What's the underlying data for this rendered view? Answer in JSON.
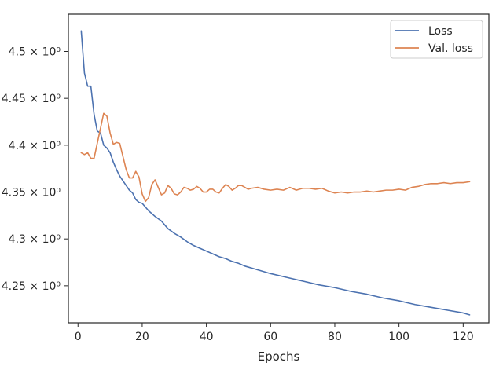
{
  "chart_data": {
    "type": "line",
    "title": "",
    "xlabel": "Epochs",
    "ylabel": "",
    "xlim": [
      -3,
      128
    ],
    "ylim": [
      4.2105,
      4.5398
    ],
    "x_ticks": [
      0,
      20,
      40,
      60,
      80,
      100,
      120
    ],
    "x_tick_labels": [
      "0",
      "20",
      "40",
      "60",
      "80",
      "100",
      "120"
    ],
    "y_ticks": [
      4.25,
      4.3,
      4.35,
      4.4,
      4.45,
      4.5
    ],
    "y_tick_labels": [
      "4.25 × 10⁰",
      "4.3 × 10⁰",
      "4.35 × 10⁰",
      "4.4 × 10⁰",
      "4.45 × 10⁰",
      "4.5 × 10⁰"
    ],
    "grid": false,
    "legend_position": "top-right",
    "series": [
      {
        "name": "Loss",
        "color": "#4c72b0",
        "points": [
          [
            1,
            4.522
          ],
          [
            2,
            4.477
          ],
          [
            3,
            4.463
          ],
          [
            4,
            4.463
          ],
          [
            5,
            4.433
          ],
          [
            6,
            4.415
          ],
          [
            7,
            4.413
          ],
          [
            8,
            4.4
          ],
          [
            9,
            4.397
          ],
          [
            10,
            4.392
          ],
          [
            11,
            4.382
          ],
          [
            12,
            4.374
          ],
          [
            13,
            4.367
          ],
          [
            14,
            4.362
          ],
          [
            15,
            4.357
          ],
          [
            16,
            4.352
          ],
          [
            17,
            4.349
          ],
          [
            18,
            4.342
          ],
          [
            19,
            4.339
          ],
          [
            20,
            4.338
          ],
          [
            22,
            4.33
          ],
          [
            24,
            4.324
          ],
          [
            26,
            4.319
          ],
          [
            28,
            4.311
          ],
          [
            30,
            4.306
          ],
          [
            32,
            4.302
          ],
          [
            34,
            4.297
          ],
          [
            36,
            4.293
          ],
          [
            38,
            4.29
          ],
          [
            40,
            4.287
          ],
          [
            42,
            4.284
          ],
          [
            44,
            4.281
          ],
          [
            46,
            4.279
          ],
          [
            48,
            4.276
          ],
          [
            50,
            4.274
          ],
          [
            52,
            4.271
          ],
          [
            55,
            4.268
          ],
          [
            60,
            4.263
          ],
          [
            65,
            4.259
          ],
          [
            70,
            4.255
          ],
          [
            75,
            4.251
          ],
          [
            80,
            4.248
          ],
          [
            85,
            4.244
          ],
          [
            90,
            4.241
          ],
          [
            95,
            4.237
          ],
          [
            100,
            4.234
          ],
          [
            105,
            4.23
          ],
          [
            110,
            4.227
          ],
          [
            115,
            4.224
          ],
          [
            120,
            4.221
          ],
          [
            122,
            4.219
          ]
        ]
      },
      {
        "name": "Val. loss",
        "color": "#dd8452",
        "points": [
          [
            1,
            4.392
          ],
          [
            2,
            4.39
          ],
          [
            3,
            4.392
          ],
          [
            4,
            4.386
          ],
          [
            5,
            4.386
          ],
          [
            6,
            4.402
          ],
          [
            7,
            4.418
          ],
          [
            8,
            4.434
          ],
          [
            9,
            4.431
          ],
          [
            10,
            4.413
          ],
          [
            11,
            4.401
          ],
          [
            12,
            4.403
          ],
          [
            13,
            4.402
          ],
          [
            14,
            4.388
          ],
          [
            15,
            4.374
          ],
          [
            16,
            4.365
          ],
          [
            17,
            4.365
          ],
          [
            18,
            4.372
          ],
          [
            19,
            4.366
          ],
          [
            20,
            4.348
          ],
          [
            21,
            4.34
          ],
          [
            22,
            4.344
          ],
          [
            23,
            4.358
          ],
          [
            24,
            4.363
          ],
          [
            25,
            4.355
          ],
          [
            26,
            4.347
          ],
          [
            27,
            4.349
          ],
          [
            28,
            4.357
          ],
          [
            29,
            4.354
          ],
          [
            30,
            4.348
          ],
          [
            31,
            4.347
          ],
          [
            32,
            4.35
          ],
          [
            33,
            4.355
          ],
          [
            34,
            4.354
          ],
          [
            35,
            4.352
          ],
          [
            36,
            4.353
          ],
          [
            37,
            4.356
          ],
          [
            38,
            4.354
          ],
          [
            39,
            4.35
          ],
          [
            40,
            4.35
          ],
          [
            41,
            4.353
          ],
          [
            42,
            4.353
          ],
          [
            43,
            4.35
          ],
          [
            44,
            4.349
          ],
          [
            45,
            4.354
          ],
          [
            46,
            4.358
          ],
          [
            47,
            4.356
          ],
          [
            48,
            4.352
          ],
          [
            49,
            4.354
          ],
          [
            50,
            4.357
          ],
          [
            51,
            4.357
          ],
          [
            52,
            4.355
          ],
          [
            53,
            4.353
          ],
          [
            54,
            4.354
          ],
          [
            56,
            4.355
          ],
          [
            58,
            4.353
          ],
          [
            60,
            4.352
          ],
          [
            62,
            4.353
          ],
          [
            64,
            4.352
          ],
          [
            66,
            4.355
          ],
          [
            68,
            4.352
          ],
          [
            70,
            4.354
          ],
          [
            72,
            4.354
          ],
          [
            74,
            4.353
          ],
          [
            76,
            4.354
          ],
          [
            78,
            4.351
          ],
          [
            80,
            4.349
          ],
          [
            82,
            4.35
          ],
          [
            84,
            4.349
          ],
          [
            86,
            4.35
          ],
          [
            88,
            4.35
          ],
          [
            90,
            4.351
          ],
          [
            92,
            4.35
          ],
          [
            94,
            4.351
          ],
          [
            96,
            4.352
          ],
          [
            98,
            4.352
          ],
          [
            100,
            4.353
          ],
          [
            102,
            4.352
          ],
          [
            104,
            4.355
          ],
          [
            106,
            4.356
          ],
          [
            108,
            4.358
          ],
          [
            110,
            4.359
          ],
          [
            112,
            4.359
          ],
          [
            114,
            4.36
          ],
          [
            116,
            4.359
          ],
          [
            118,
            4.36
          ],
          [
            120,
            4.36
          ],
          [
            122,
            4.361
          ]
        ]
      }
    ]
  }
}
